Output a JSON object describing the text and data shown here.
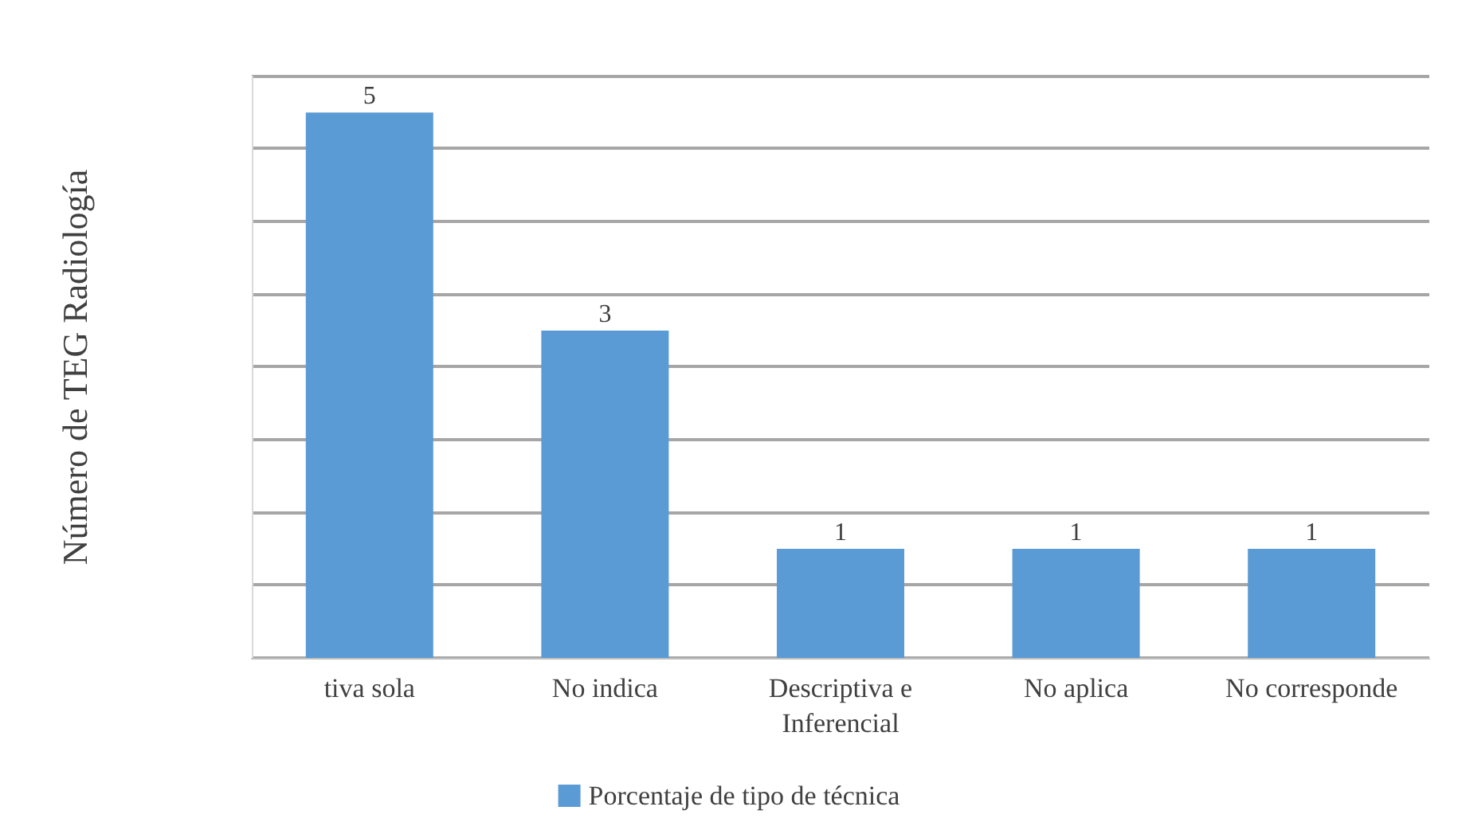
{
  "chart_data": {
    "type": "bar",
    "ylabel": "Número de TEG Radiología",
    "categories": [
      "tiva sola",
      "No indica",
      "Descriptiva e\nInferencial",
      "No aplica",
      "No corresponde"
    ],
    "series": [
      {
        "name": "Porcentaje de tipo de técnica",
        "color": "#5b9bd5",
        "values": [
          5,
          3,
          1,
          1,
          1
        ]
      }
    ],
    "ylim": [
      0,
      5.33
    ],
    "yticks": [
      {
        "value": 0,
        "label": null
      },
      {
        "value": 0.67,
        "label": null
      },
      {
        "value": 1.33,
        "label": null
      },
      {
        "value": 2,
        "label": null
      },
      {
        "value": 2.67,
        "label": null
      },
      {
        "value": 3.33,
        "label": null
      },
      {
        "value": 4,
        "label": null
      },
      {
        "value": 4.67,
        "label": null
      },
      {
        "value": 5.33,
        "label": null
      }
    ],
    "tick_labels": "x",
    "grid": "y",
    "data_labels": true,
    "legend": "bottom"
  }
}
